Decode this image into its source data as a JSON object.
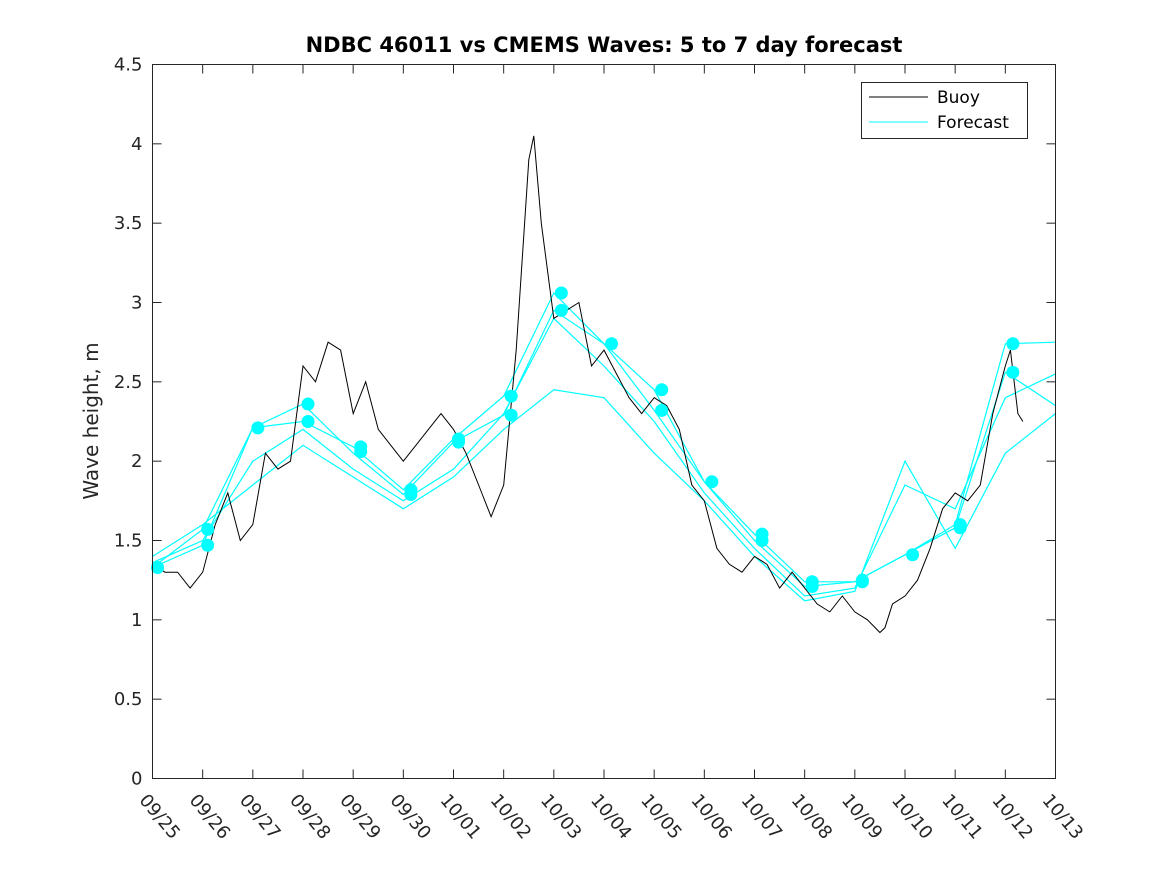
{
  "chart_data": {
    "type": "line",
    "title": "NDBC 46011 vs CMEMS Waves: 5 to 7 day forecast",
    "xlabel": "",
    "ylabel": "Wave height, m",
    "xlim": [
      0,
      18
    ],
    "ylim": [
      0,
      4.5
    ],
    "y_ticks": [
      0,
      0.5,
      1,
      1.5,
      2,
      2.5,
      3,
      3.5,
      4,
      4.5
    ],
    "x_ticks": [
      0,
      1,
      2,
      3,
      4,
      5,
      6,
      7,
      8,
      9,
      10,
      11,
      12,
      13,
      14,
      15,
      16,
      17,
      18
    ],
    "x_tick_labels": [
      "09/25",
      "09/26",
      "09/27",
      "09/28",
      "09/29",
      "09/30",
      "10/01",
      "10/02",
      "10/03",
      "10/04",
      "10/05",
      "10/06",
      "10/07",
      "10/08",
      "10/09",
      "10/10",
      "10/11",
      "10/12",
      "10/13"
    ],
    "legend": {
      "placement": "top-right",
      "entries": [
        "Buoy",
        "Forecast"
      ]
    },
    "colors": {
      "buoy": "#000000",
      "forecast": "#00ffff",
      "axes": "#262626"
    },
    "buoy_series": {
      "name": "Buoy",
      "x": [
        0,
        0.25,
        0.5,
        0.75,
        1,
        1.25,
        1.5,
        1.75,
        2,
        2.25,
        2.5,
        2.75,
        3,
        3.25,
        3.5,
        3.75,
        4,
        4.25,
        4.5,
        4.75,
        5,
        5.25,
        5.5,
        5.75,
        6,
        6.25,
        6.5,
        6.75,
        7,
        7.25,
        7.5,
        7.6,
        7.75,
        8,
        8.25,
        8.5,
        8.75,
        9,
        9.25,
        9.5,
        9.75,
        10,
        10.25,
        10.5,
        10.75,
        11,
        11.25,
        11.5,
        11.75,
        12,
        12.25,
        12.5,
        12.75,
        13,
        13.25,
        13.5,
        13.75,
        14,
        14.25,
        14.5,
        14.6,
        14.75,
        15,
        15.25,
        15.5,
        15.75,
        16,
        16.25,
        16.5,
        16.75,
        17,
        17.1,
        17.25,
        17.35
      ],
      "values": [
        1.35,
        1.3,
        1.3,
        1.2,
        1.3,
        1.6,
        1.8,
        1.5,
        1.6,
        2.05,
        1.95,
        2.0,
        2.6,
        2.5,
        2.75,
        2.7,
        2.3,
        2.5,
        2.2,
        2.1,
        2.0,
        2.1,
        2.2,
        2.3,
        2.2,
        2.05,
        1.85,
        1.65,
        1.85,
        2.7,
        3.9,
        4.05,
        3.5,
        2.9,
        2.95,
        3.0,
        2.6,
        2.7,
        2.55,
        2.4,
        2.3,
        2.4,
        2.35,
        2.2,
        1.85,
        1.75,
        1.45,
        1.35,
        1.3,
        1.4,
        1.35,
        1.2,
        1.3,
        1.2,
        1.1,
        1.05,
        1.15,
        1.05,
        1.0,
        0.92,
        0.95,
        1.1,
        1.15,
        1.25,
        1.45,
        1.7,
        1.8,
        1.75,
        1.85,
        2.3,
        2.6,
        2.7,
        2.3,
        2.25
      ]
    },
    "forecast_series": [
      {
        "name": "Forecast",
        "x": [
          0,
          1,
          2,
          3,
          4,
          5,
          6,
          7,
          8,
          9,
          10,
          11,
          12,
          13,
          14,
          15,
          16,
          17,
          18
        ],
        "values": [
          1.33,
          1.47,
          2.21,
          2.25,
          2.09,
          1.82,
          2.14,
          2.41,
          3.06,
          2.74,
          2.32,
          1.87,
          1.54,
          1.24,
          1.24,
          1.41,
          1.6,
          2.74,
          2.75
        ]
      },
      {
        "name": "Forecast",
        "x": [
          0,
          1,
          2,
          3,
          4,
          5,
          6,
          7,
          8,
          9,
          10,
          11,
          12,
          13,
          14,
          15,
          16,
          17,
          18
        ],
        "values": [
          1.33,
          1.57,
          2.21,
          2.36,
          2.05,
          1.79,
          2.12,
          2.29,
          2.95,
          2.74,
          2.45,
          1.87,
          1.5,
          1.21,
          1.24,
          1.41,
          1.58,
          2.56,
          2.35
        ]
      },
      {
        "name": "Forecast",
        "x": [
          0,
          1,
          2,
          3,
          4,
          5,
          6,
          7,
          8,
          9,
          10,
          11,
          12,
          13,
          14,
          15,
          16,
          17,
          18
        ],
        "values": [
          1.36,
          1.5,
          2.0,
          2.2,
          1.95,
          1.75,
          1.95,
          2.3,
          2.9,
          2.6,
          2.25,
          1.8,
          1.45,
          1.15,
          1.2,
          1.85,
          1.7,
          2.4,
          2.55
        ]
      },
      {
        "name": "Forecast",
        "x": [
          0,
          1,
          2,
          3,
          4,
          5,
          6,
          7,
          8,
          9,
          10,
          11,
          12,
          13,
          14,
          15,
          16,
          17,
          18
        ],
        "values": [
          1.4,
          1.6,
          1.85,
          2.1,
          1.9,
          1.7,
          1.9,
          2.2,
          2.45,
          2.4,
          2.05,
          1.75,
          1.4,
          1.12,
          1.18,
          2.0,
          1.45,
          2.05,
          2.3
        ]
      }
    ],
    "forecast_markers": {
      "x": [
        0.1,
        1.1,
        1.1,
        2.1,
        3.1,
        3.1,
        4.15,
        4.15,
        5.15,
        5.15,
        6.1,
        6.1,
        7.15,
        7.15,
        8.15,
        8.15,
        9.15,
        10.15,
        10.15,
        11.15,
        12.15,
        12.15,
        13.15,
        13.15,
        14.15,
        14.15,
        15.15,
        16.1,
        16.1,
        17.15,
        17.15
      ],
      "values": [
        1.33,
        1.57,
        1.47,
        2.21,
        2.36,
        2.25,
        2.09,
        2.06,
        1.82,
        1.79,
        2.14,
        2.12,
        2.41,
        2.29,
        3.06,
        2.95,
        2.74,
        2.45,
        2.32,
        1.87,
        1.54,
        1.5,
        1.24,
        1.21,
        1.24,
        1.25,
        1.41,
        1.6,
        1.58,
        2.74,
        2.56
      ]
    }
  }
}
